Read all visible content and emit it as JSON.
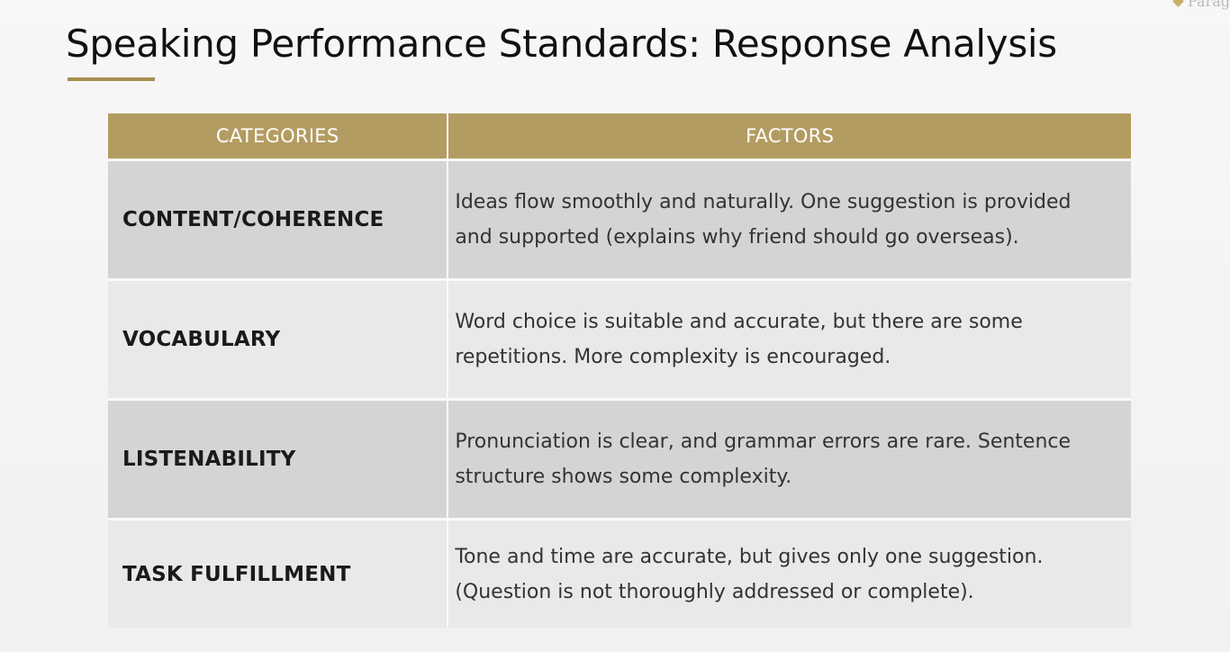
{
  "logo": {
    "text": "Parag"
  },
  "title": "Speaking Performance Standards: Response Analysis",
  "table": {
    "headers": [
      "CATEGORIES",
      "FACTORS"
    ],
    "rows": [
      {
        "category": "CONTENT/COHERENCE",
        "factors": "Ideas flow smoothly and naturally. One suggestion is provided and supported (explains why friend should go overseas)."
      },
      {
        "category": "VOCABULARY",
        "factors": "Word choice is suitable and accurate, but there are some repetitions.  More complexity is encouraged."
      },
      {
        "category": "LISTENABILITY",
        "factors": "Pronunciation is clear, and grammar errors are rare.  Sentence structure shows some complexity."
      },
      {
        "category": "TASK FULFILLMENT",
        "factors": "Tone and time are accurate, but gives only one suggestion. (Question is not thoroughly addressed or complete)."
      }
    ]
  },
  "colors": {
    "header_gold": "#b39c61",
    "accent_rule": "#a58f51",
    "row_dark": "#d4d4d4",
    "row_light": "#e9e9e9"
  }
}
